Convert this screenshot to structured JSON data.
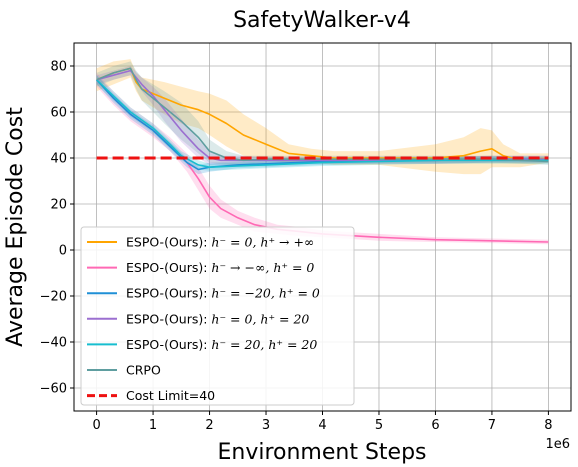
{
  "chart_data": {
    "type": "line",
    "title": "SafetyWalker-v4",
    "xlabel": "Environment Steps",
    "ylabel": "Average Episode Cost",
    "x_offset_label": "1e6",
    "xlim": [
      -0.4,
      8.4
    ],
    "ylim": [
      -70,
      90
    ],
    "xticks": [
      0,
      1,
      2,
      3,
      4,
      5,
      6,
      7,
      8
    ],
    "yticks": [
      -60,
      -40,
      -20,
      0,
      20,
      40,
      60,
      80
    ],
    "ytick_labels": [
      "−60",
      "−40",
      "−20",
      "0",
      "20",
      "40",
      "60",
      "80"
    ],
    "grid": true,
    "legend_position": "lower-left",
    "cost_limit": {
      "name": "Cost Limit=40",
      "value": 40,
      "color": "#ee1111",
      "x": [
        0,
        8
      ]
    },
    "series": [
      {
        "name": "ESPO-(Ours): h⁻ = 0, h⁺ → +∞",
        "legend_prefix": "ESPO-(Ours): ",
        "legend_math": "h⁻ = 0, h⁺ → +∞",
        "color": "#ffa500",
        "x": [
          0,
          0.3,
          0.6,
          0.7,
          0.8,
          1.0,
          1.2,
          1.5,
          1.8,
          2.0,
          2.3,
          2.6,
          3.0,
          3.4,
          3.8,
          4.2,
          5.0,
          6.0,
          6.5,
          6.8,
          7.0,
          7.2,
          7.5,
          8.0
        ],
        "y": [
          74,
          77,
          79,
          73,
          70,
          68,
          66,
          63,
          61,
          59,
          55,
          50,
          46,
          42,
          41,
          40,
          40,
          40,
          41,
          43,
          44,
          41,
          39,
          40
        ],
        "band": [
          5,
          5,
          4,
          4,
          5,
          6,
          7,
          8,
          8,
          9,
          10,
          9,
          7,
          4,
          3,
          3,
          3,
          6,
          8,
          10,
          8,
          5,
          3,
          2
        ]
      },
      {
        "name": "ESPO-(Ours): h⁻ → −∞, h⁺ = 0",
        "legend_prefix": "ESPO-(Ours): ",
        "legend_math": "h⁻ → −∞, h⁺ = 0",
        "color": "#ff69b4",
        "x": [
          0,
          0.3,
          0.6,
          1.0,
          1.3,
          1.6,
          1.8,
          2.0,
          2.2,
          2.5,
          2.8,
          3.2,
          3.6,
          4.0,
          5.0,
          6.0,
          7.0,
          8.0
        ],
        "y": [
          74,
          66,
          59,
          52,
          46,
          38,
          31,
          23,
          18,
          14,
          11,
          9,
          8,
          7,
          5.5,
          4.5,
          4,
          3.5
        ],
        "band": [
          3,
          3,
          3,
          3,
          3,
          4,
          5,
          5,
          4,
          3,
          3,
          2,
          2,
          1.5,
          1.5,
          1,
          1,
          1
        ]
      },
      {
        "name": "ESPO-(Ours): h⁻ = −20, h⁺ = 0",
        "legend_prefix": "ESPO-(Ours): ",
        "legend_math": "h⁻ = −20, h⁺ = 0",
        "color": "#1f8fd6",
        "x": [
          0,
          0.3,
          0.6,
          1.0,
          1.3,
          1.6,
          1.8,
          2.0,
          2.5,
          3.0,
          4.0,
          5.0,
          6.0,
          7.0,
          8.0
        ],
        "y": [
          74,
          66,
          59,
          52,
          45,
          38,
          35,
          36,
          37,
          37.5,
          38.5,
          39,
          39,
          39.5,
          39.5
        ],
        "band": [
          2,
          2,
          2,
          2,
          2,
          2,
          2,
          2,
          1.5,
          1.5,
          1.5,
          1.5,
          1.5,
          1.5,
          1.5
        ]
      },
      {
        "name": "ESPO-(Ours): h⁻ = 0, h⁺ = 20",
        "legend_prefix": "ESPO-(Ours): ",
        "legend_math": "h⁻ = 0, h⁺ = 20",
        "color": "#9b6fd0",
        "x": [
          0,
          0.3,
          0.6,
          0.8,
          1.0,
          1.2,
          1.5,
          1.8,
          2.0,
          2.2,
          2.5,
          3.0,
          4.0,
          5.0,
          6.0,
          7.0,
          8.0
        ],
        "y": [
          74,
          76,
          78,
          72,
          67,
          61,
          52,
          44,
          40,
          39,
          39,
          39,
          39,
          39,
          39,
          39.5,
          39.5
        ],
        "band": [
          2,
          2,
          2,
          3,
          4,
          5,
          5,
          4,
          3,
          2,
          2,
          1.5,
          1.5,
          1.5,
          1.5,
          1.5,
          1.5
        ]
      },
      {
        "name": "ESPO-(Ours): h⁻ = 20, h⁺ = 20",
        "legend_prefix": "ESPO-(Ours): ",
        "legend_math": "h⁻ = 20, h⁺ = 20",
        "color": "#17becf",
        "x": [
          0,
          0.3,
          0.6,
          1.0,
          1.3,
          1.5,
          1.8,
          2.0,
          2.5,
          3.0,
          4.0,
          5.0,
          6.0,
          7.0,
          8.0
        ],
        "y": [
          74,
          67,
          60,
          53,
          46,
          41,
          37,
          36,
          36.5,
          37,
          38,
          38.5,
          39,
          39,
          39
        ],
        "band": [
          2,
          2,
          2,
          2,
          2,
          2,
          2,
          1.5,
          1.5,
          1.5,
          1.5,
          1.5,
          1.5,
          1.5,
          1.5
        ]
      },
      {
        "name": "CRPO",
        "legend_prefix": "CRPO",
        "legend_math": "",
        "color": "#5f9ea0",
        "x": [
          0,
          0.3,
          0.6,
          0.7,
          0.8,
          1.0,
          1.2,
          1.5,
          1.8,
          2.0,
          2.3,
          2.6,
          3.0,
          4.0,
          5.0,
          6.0,
          7.0,
          8.0
        ],
        "y": [
          74,
          77,
          79,
          74,
          70,
          66,
          62,
          56,
          49,
          43,
          40,
          39,
          39.5,
          39.5,
          39.5,
          39.5,
          39.5,
          38.5
        ],
        "band": [
          3,
          3,
          3,
          4,
          5,
          6,
          7,
          8,
          7,
          5,
          3,
          2,
          1.5,
          1.5,
          1.5,
          1.5,
          1.5,
          1.5
        ]
      }
    ]
  }
}
